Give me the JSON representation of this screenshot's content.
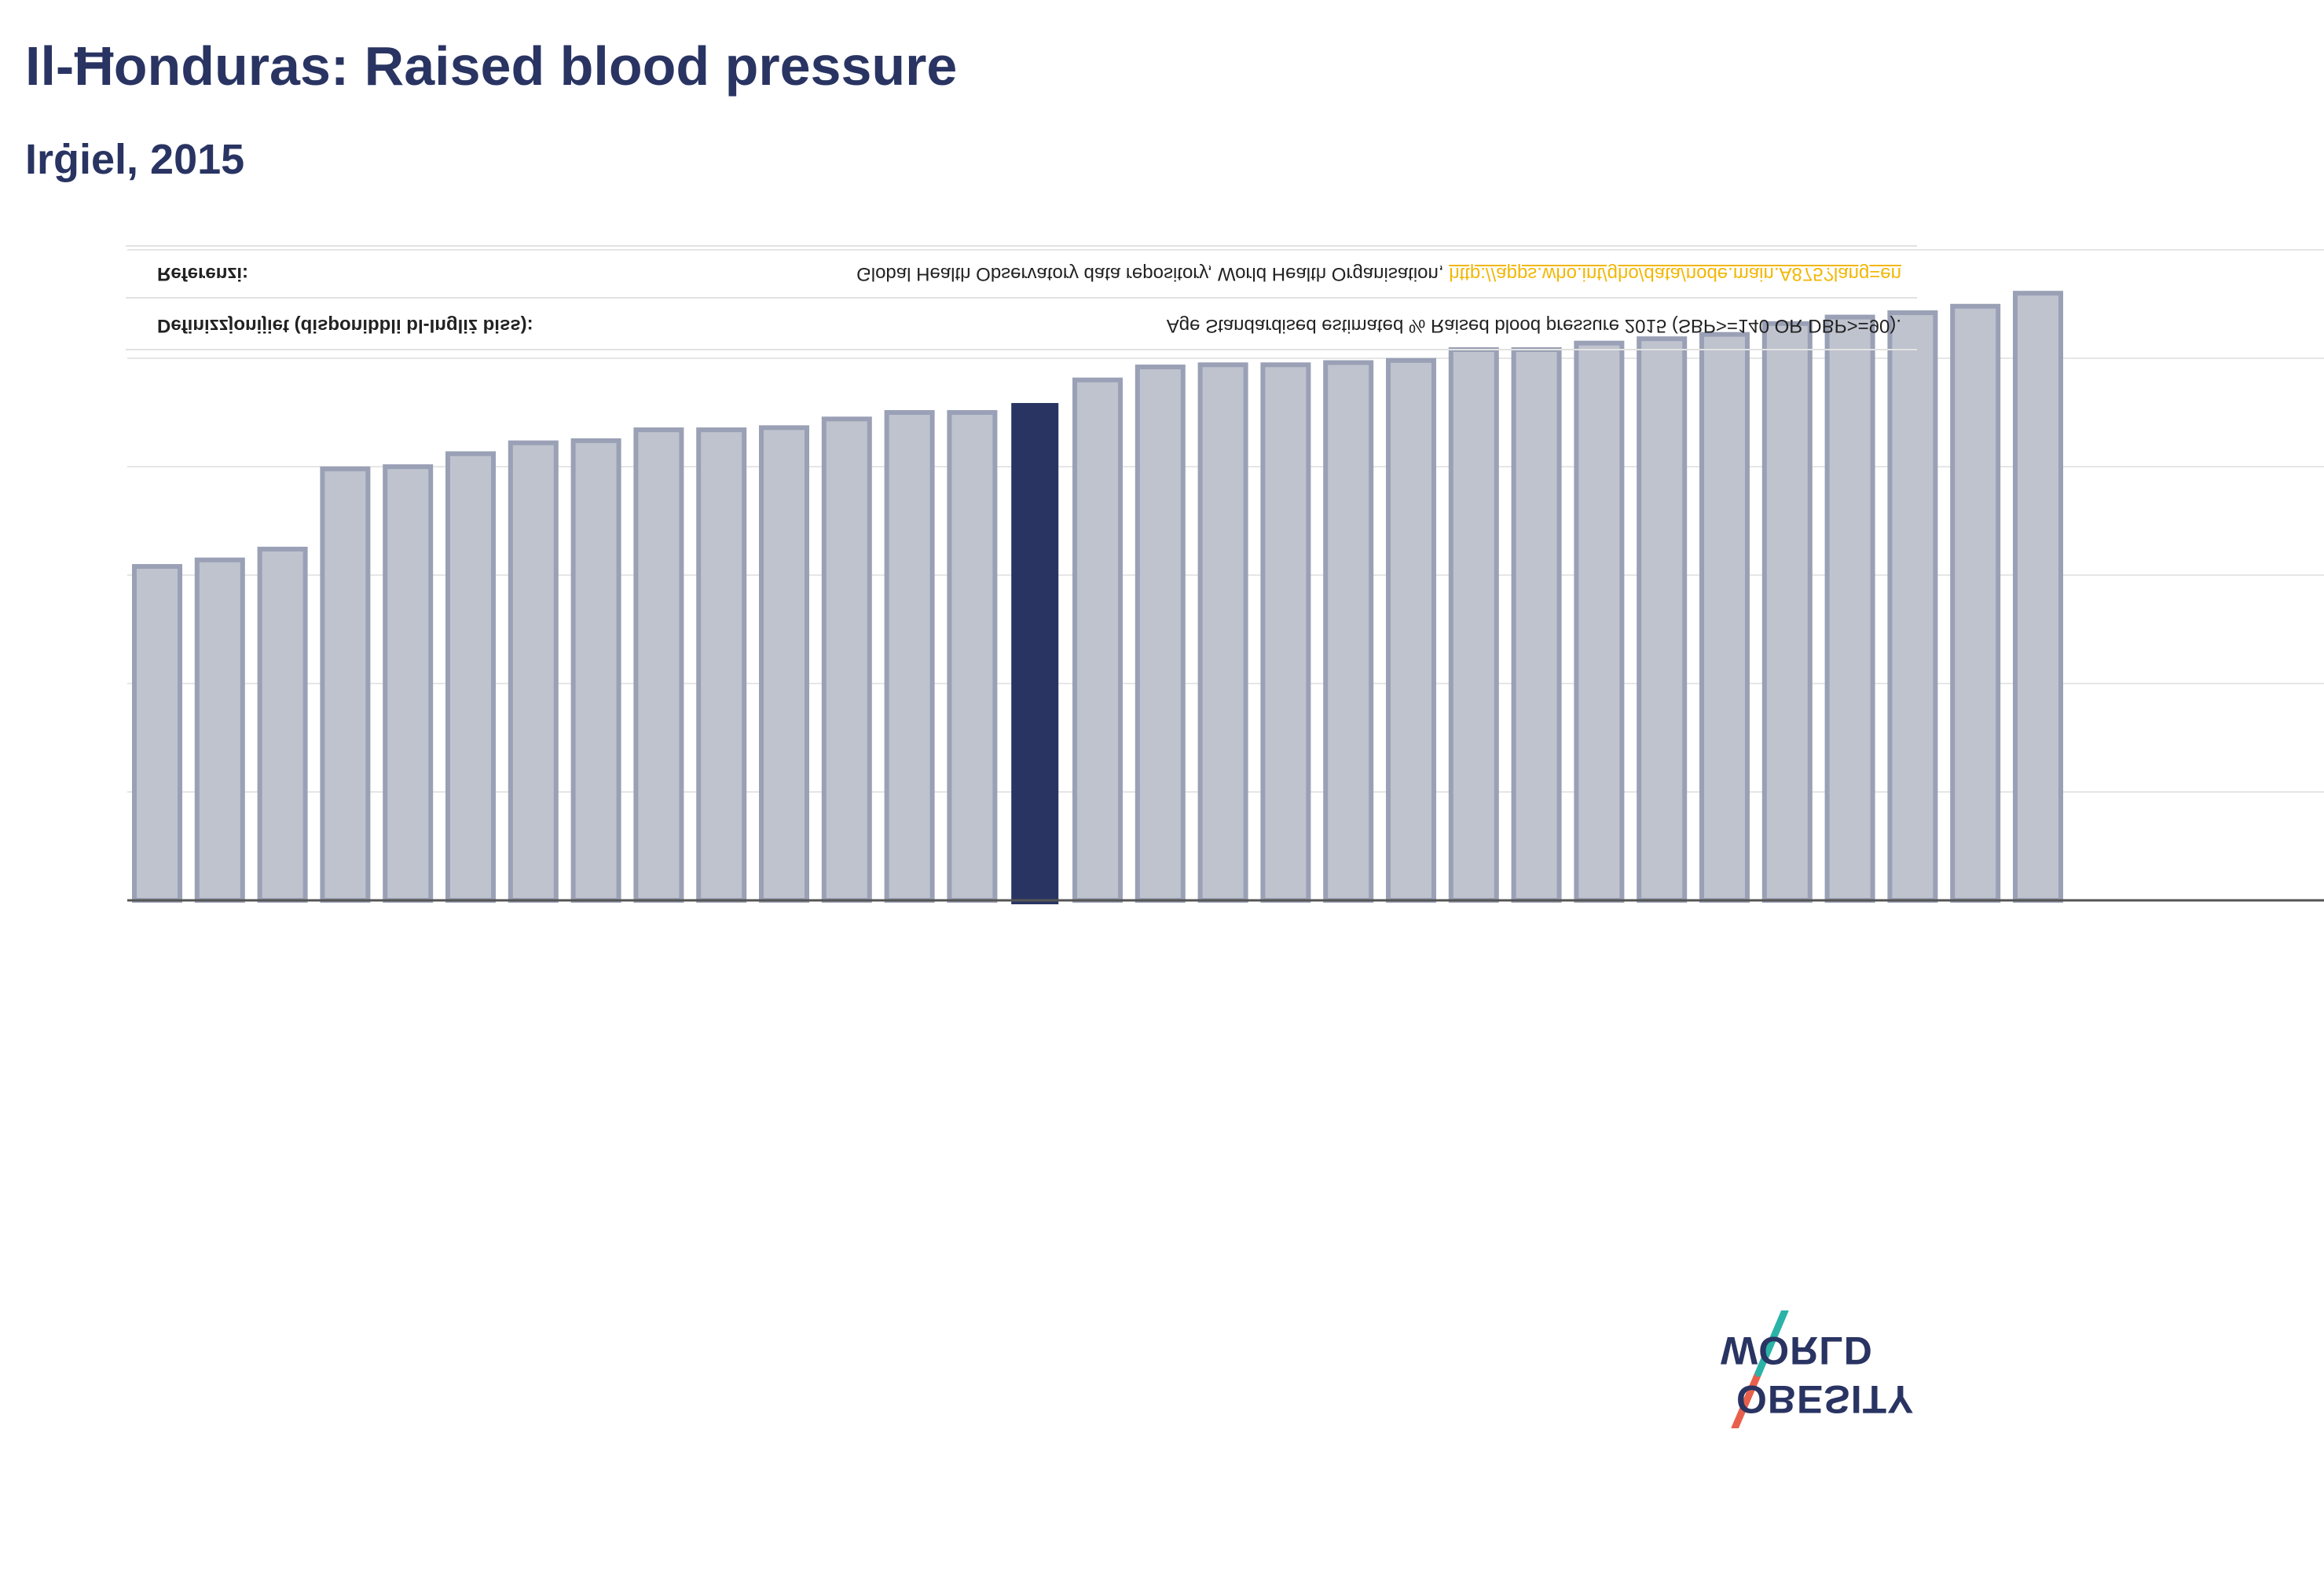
{
  "title": "Il-Ħonduras: Raised blood pressure",
  "subtitle": "Irġiel, 2015",
  "info": {
    "definitions_label": "Definizzjonijiet (disponibbli bl-Ingliż biss):",
    "definitions_value": "Age Standardised estimated % Raised blood pressure 2015 (SBP>=140 OR DBP>=90).",
    "references_label": "Referenzi:",
    "references_value": "Global Health Observatory data repository, World Health Organisation,",
    "references_link": "http://apps.who.int/gho/data/node.main.A875?lang=en"
  },
  "logo": {
    "line1": "OBESITY",
    "line2": "WORLD"
  },
  "colors": {
    "title": "#293462",
    "bar": "#bfc3ce",
    "bar_stroke": "#9aa0b5",
    "highlight": "#293462",
    "grid": "#e6e6e6",
    "axis": "#555555",
    "logo_red": "#e8604c",
    "logo_teal": "#2bb3a8"
  },
  "chart_data": {
    "type": "bar",
    "title": "Il-Ħonduras: Raised blood pressure",
    "subtitle": "Irġiel, 2015",
    "xlabel": "",
    "ylabel": "",
    "ylim": [
      0,
      30
    ],
    "grid": true,
    "highlight_index": 14,
    "values": [
      15.4,
      15.7,
      16.2,
      19.9,
      20.0,
      20.6,
      21.1,
      21.2,
      21.7,
      21.7,
      21.8,
      22.2,
      22.5,
      22.5,
      22.9,
      24.0,
      24.6,
      24.7,
      24.7,
      24.8,
      24.9,
      25.4,
      25.4,
      25.7,
      25.9,
      26.1,
      26.6,
      26.9,
      27.1,
      27.4,
      28.0
    ]
  }
}
